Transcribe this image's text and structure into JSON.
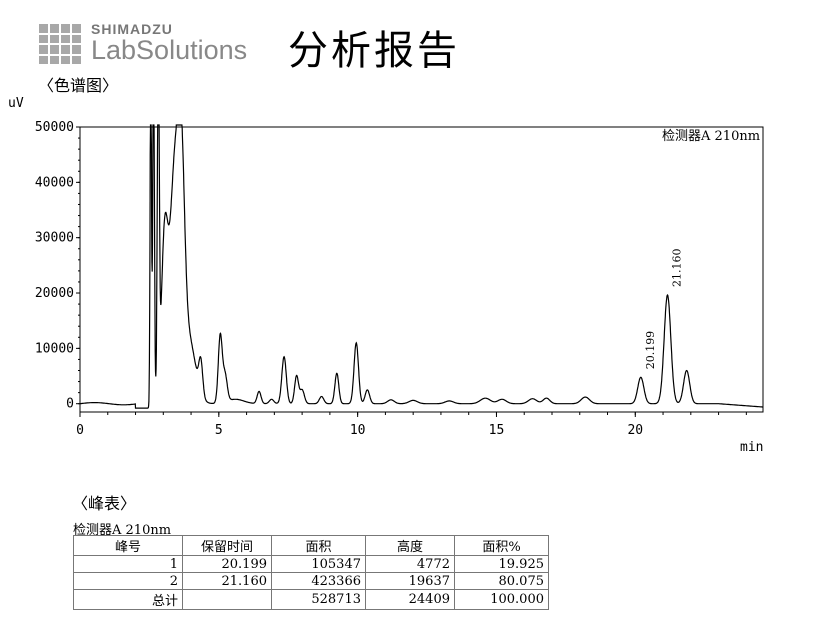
{
  "header": {
    "brand": "SHIMADZU",
    "product": "LabSolutions",
    "report_title": "分析报告"
  },
  "sections": {
    "chromatogram": "〈色谱图〉",
    "peak_table": "〈峰表〉"
  },
  "chart_data": {
    "type": "line",
    "ylabel": "uV",
    "xlabel": "min",
    "xlim": [
      0,
      24.6
    ],
    "ylim": [
      -1500,
      50000
    ],
    "x_ticks": [
      0,
      5,
      10,
      15,
      20
    ],
    "y_ticks": [
      0,
      10000,
      20000,
      30000,
      40000,
      50000
    ],
    "detector_label": "检测器A 210nm",
    "peak_labels": [
      {
        "x": 20.199,
        "y": 4772,
        "text": "20.199"
      },
      {
        "x": 21.16,
        "y": 19637,
        "text": "21.160"
      }
    ],
    "baseline_y": 0,
    "series": [
      {
        "peaks": [
          {
            "t": 2.55,
            "h": 62000,
            "w": 0.025
          },
          {
            "t": 2.65,
            "h": 62000,
            "w": 0.03
          },
          {
            "t": 2.82,
            "h": 62000,
            "w": 0.035
          },
          {
            "t": 3.05,
            "h": 30000,
            "w": 0.12
          },
          {
            "t": 3.4,
            "h": 40000,
            "w": 0.16
          },
          {
            "t": 3.65,
            "h": 34000,
            "w": 0.12
          },
          {
            "t": 3.9,
            "h": 12000,
            "w": 0.25
          },
          {
            "t": 4.35,
            "h": 6000,
            "w": 0.07
          },
          {
            "t": 5.05,
            "h": 12000,
            "w": 0.07
          },
          {
            "t": 5.22,
            "h": 5000,
            "w": 0.08
          },
          {
            "t": 5.6,
            "h": 800,
            "w": 0.3
          },
          {
            "t": 6.45,
            "h": 2200,
            "w": 0.07
          },
          {
            "t": 6.9,
            "h": 800,
            "w": 0.08
          },
          {
            "t": 7.35,
            "h": 8500,
            "w": 0.08
          },
          {
            "t": 7.8,
            "h": 5000,
            "w": 0.07
          },
          {
            "t": 8.0,
            "h": 2500,
            "w": 0.08
          },
          {
            "t": 8.7,
            "h": 1300,
            "w": 0.08
          },
          {
            "t": 9.25,
            "h": 5500,
            "w": 0.07
          },
          {
            "t": 9.95,
            "h": 11000,
            "w": 0.08
          },
          {
            "t": 10.35,
            "h": 2500,
            "w": 0.08
          },
          {
            "t": 11.2,
            "h": 700,
            "w": 0.12
          },
          {
            "t": 12.0,
            "h": 600,
            "w": 0.15
          },
          {
            "t": 13.3,
            "h": 500,
            "w": 0.15
          },
          {
            "t": 14.6,
            "h": 1000,
            "w": 0.18
          },
          {
            "t": 15.2,
            "h": 800,
            "w": 0.15
          },
          {
            "t": 16.3,
            "h": 900,
            "w": 0.15
          },
          {
            "t": 16.8,
            "h": 1000,
            "w": 0.12
          },
          {
            "t": 18.2,
            "h": 1200,
            "w": 0.15
          },
          {
            "t": 20.199,
            "h": 4772,
            "w": 0.11
          },
          {
            "t": 21.16,
            "h": 19637,
            "w": 0.12
          },
          {
            "t": 21.85,
            "h": 6000,
            "w": 0.11
          }
        ]
      }
    ]
  },
  "peak_table": {
    "detector": "检测器A 210nm",
    "columns": [
      "峰号",
      "保留时间",
      "面积",
      "高度",
      "面积%"
    ],
    "rows": [
      [
        "1",
        "20.199",
        "105347",
        "4772",
        "19.925"
      ],
      [
        "2",
        "21.160",
        "423366",
        "19637",
        "80.075"
      ]
    ],
    "total": [
      "总计",
      "",
      "528713",
      "24409",
      "100.000"
    ]
  }
}
